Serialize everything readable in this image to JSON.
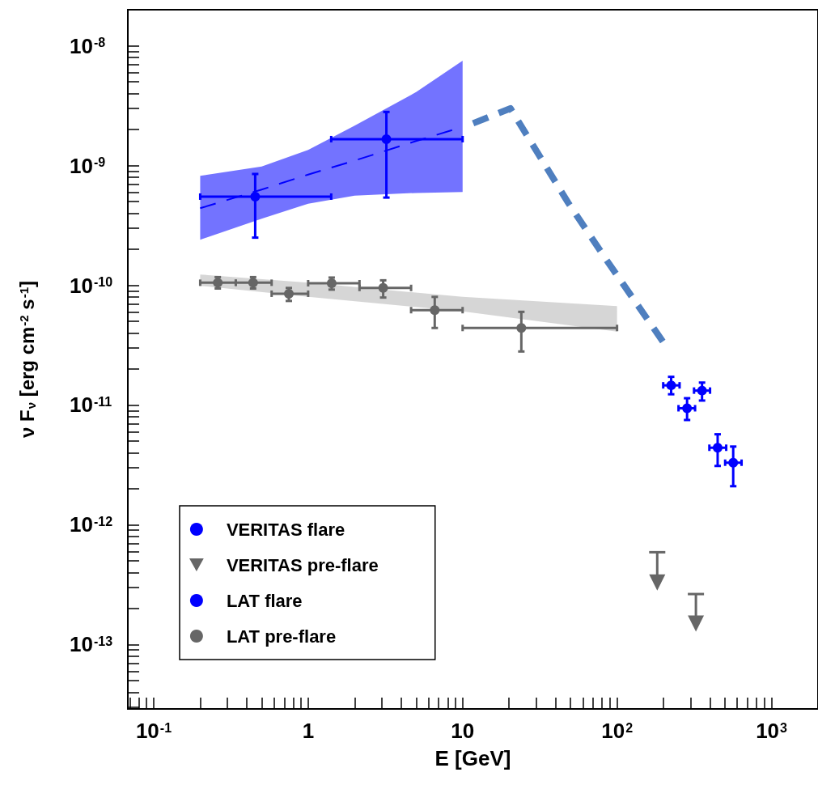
{
  "chart_data": {
    "type": "scatter",
    "xlabel": "E [GeV]",
    "ylabel": "ν F$_{ν}$ [erg cm$^{-2}$ s$^{-1}$]",
    "log": "xy",
    "legend": "bottom left",
    "xlim": [
      0.068,
      2000
    ],
    "ylim": [
      2.9e-14,
      2e-08
    ],
    "xticks": [
      {
        "value": 0.07,
        "label": null
      },
      {
        "value": 0.08,
        "label": null
      },
      {
        "value": 0.09,
        "label": null
      },
      {
        "value": 0.1,
        "label": "10$^{-1}$"
      },
      {
        "value": 0.2,
        "label": null
      },
      {
        "value": 0.3,
        "label": null
      },
      {
        "value": 0.4,
        "label": null
      },
      {
        "value": 0.5,
        "label": null
      },
      {
        "value": 0.6,
        "label": null
      },
      {
        "value": 0.7,
        "label": null
      },
      {
        "value": 0.8,
        "label": null
      },
      {
        "value": 0.9,
        "label": null
      },
      1,
      {
        "value": 2,
        "label": null
      },
      {
        "value": 3,
        "label": null
      },
      {
        "value": 4,
        "label": null
      },
      {
        "value": 5,
        "label": null
      },
      {
        "value": 6,
        "label": null
      },
      {
        "value": 7,
        "label": null
      },
      {
        "value": 8,
        "label": null
      },
      {
        "value": 9,
        "label": null
      },
      10,
      {
        "value": 20,
        "label": null
      },
      {
        "value": 30,
        "label": null
      },
      {
        "value": 40,
        "label": null
      },
      {
        "value": 50,
        "label": null
      },
      {
        "value": 60,
        "label": null
      },
      {
        "value": 70,
        "label": null
      },
      {
        "value": 80,
        "label": null
      },
      {
        "value": 90,
        "label": null
      },
      {
        "value": 100,
        "label": "10$^{2}$"
      },
      {
        "value": 200,
        "label": null
      },
      {
        "value": 300,
        "label": null
      },
      {
        "value": 400,
        "label": null
      },
      {
        "value": 500,
        "label": null
      },
      {
        "value": 600,
        "label": null
      },
      {
        "value": 700,
        "label": null
      },
      {
        "value": 800,
        "label": null
      },
      {
        "value": 900,
        "label": null
      },
      {
        "value": 1000,
        "label": "10$^{3}$"
      }
    ],
    "yticks": [
      {
        "value": 3e-14,
        "label": null
      },
      {
        "value": 4e-14,
        "label": null
      },
      {
        "value": 5e-14,
        "label": null
      },
      {
        "value": 6e-14,
        "label": null
      },
      {
        "value": 7e-14,
        "label": null
      },
      {
        "value": 8e-14,
        "label": null
      },
      {
        "value": 9e-14,
        "label": null
      },
      {
        "value": 1e-13,
        "label": "10$^{-13}$"
      },
      {
        "value": 2e-13,
        "label": null
      },
      {
        "value": 3e-13,
        "label": null
      },
      {
        "value": 4e-13,
        "label": null
      },
      {
        "value": 5e-13,
        "label": null
      },
      {
        "value": 6e-13,
        "label": null
      },
      {
        "value": 7e-13,
        "label": null
      },
      {
        "value": 8e-13,
        "label": null
      },
      {
        "value": 9e-13,
        "label": null
      },
      {
        "value": 1e-12,
        "label": "10$^{-12}$"
      },
      {
        "value": 2e-12,
        "label": null
      },
      {
        "value": 3e-12,
        "label": null
      },
      {
        "value": 4e-12,
        "label": null
      },
      {
        "value": 5e-12,
        "label": null
      },
      {
        "value": 6e-12,
        "label": null
      },
      {
        "value": 7e-12,
        "label": null
      },
      {
        "value": 8e-12,
        "label": null
      },
      {
        "value": 9e-12,
        "label": null
      },
      {
        "value": 1e-11,
        "label": "10$^{-11}$"
      },
      {
        "value": 2e-11,
        "label": null
      },
      {
        "value": 3e-11,
        "label": null
      },
      {
        "value": 4e-11,
        "label": null
      },
      {
        "value": 5e-11,
        "label": null
      },
      {
        "value": 6e-11,
        "label": null
      },
      {
        "value": 7e-11,
        "label": null
      },
      {
        "value": 8e-11,
        "label": null
      },
      {
        "value": 9e-11,
        "label": null
      },
      {
        "value": 1e-10,
        "label": "10$^{-10}$"
      },
      {
        "value": 2e-10,
        "label": null
      },
      {
        "value": 3e-10,
        "label": null
      },
      {
        "value": 4e-10,
        "label": null
      },
      {
        "value": 5e-10,
        "label": null
      },
      {
        "value": 6e-10,
        "label": null
      },
      {
        "value": 7e-10,
        "label": null
      },
      {
        "value": 8e-10,
        "label": null
      },
      {
        "value": 9e-10,
        "label": null
      },
      {
        "value": 1e-09,
        "label": "10$^{-9}$"
      },
      {
        "value": 2e-09,
        "label": null
      },
      {
        "value": 3e-09,
        "label": null
      },
      {
        "value": 4e-09,
        "label": null
      },
      {
        "value": 5e-09,
        "label": null
      },
      {
        "value": 6e-09,
        "label": null
      },
      {
        "value": 7e-09,
        "label": null
      },
      {
        "value": 8e-09,
        "label": null
      },
      {
        "value": 9e-09,
        "label": null
      },
      {
        "value": 1e-08,
        "label": "10$^{-8}$"
      }
    ],
    "series": [
      {
        "type": "line",
        "color": "#b4b4b4",
        "x": [
          0.2,
          1,
          10,
          100
        ],
        "values": [
          null,
          null,
          null,
          null
        ],
        "lower": [
          9.9e-11,
          8e-11,
          6.05e-11,
          4.1e-11
        ],
        "upper": [
          1.23e-10,
          1.05e-10,
          8e-11,
          6.7e-11
        ]
      },
      {
        "type": "line",
        "color": "#0000ff",
        "line_style": "dashed",
        "x": [
          0.2,
          0.5,
          1,
          2,
          5,
          10
        ],
        "values": [
          4.4e-10,
          6.3e-10,
          8.4e-10,
          1.1e-09,
          1.6e-09,
          2.1e-09
        ],
        "lower": [
          2.4e-10,
          3.6e-10,
          4.8e-10,
          5.6e-10,
          5.9e-10,
          6e-10
        ],
        "upper": [
          8.2e-10,
          9.8e-10,
          1.35e-09,
          2.15e-09,
          4.1e-09,
          7.5e-09
        ]
      },
      {
        "type": "line",
        "color": "#4f7fbf",
        "line_style": "dashed",
        "x": [
          11.7,
          20.4,
          48.2,
          84.5,
          204
        ],
        "values": [
          2.25e-09,
          3e-09,
          4.9e-10,
          1.66e-10,
          3.2e-11
        ]
      },
      {
        "name": "VERITAS flare",
        "marker": "circle",
        "color": "#0000ff",
        "x": [
          224,
          284,
          355,
          448,
          565
        ],
        "values": [
          1.46e-11,
          9.4e-12,
          1.32e-11,
          4.4e-12,
          3.3e-12
        ],
        "errors": [
          [
            1.23e-11,
            1.72e-11
          ],
          [
            7.5e-12,
            1.14e-11
          ],
          [
            1.09e-11,
            1.54e-11
          ],
          [
            3.1e-12,
            5.7e-12
          ],
          [
            2.1e-12,
            4.5e-12
          ]
        ],
        "xerrors": [
          [
            199,
            254
          ],
          [
            250,
            320
          ],
          [
            315,
            400
          ],
          [
            396,
            509
          ],
          [
            501,
            640
          ]
        ]
      },
      {
        "name": "VERITAS pre-flare",
        "marker": "triangle",
        "color": "#666666",
        "x": [
          182,
          324
        ],
        "values": [
          3.3e-13,
          1.5e-13
        ],
        "errors": [
          [
            3.3e-13,
            5.9e-13
          ],
          [
            1.5e-13,
            2.64e-13
          ]
        ]
      },
      {
        "name": "LAT flare",
        "marker": "circle",
        "color": "#0000ff",
        "x": [
          0.454,
          3.21
        ],
        "values": [
          5.5e-10,
          1.66e-09
        ],
        "errors": [
          [
            2.5e-10,
            8.5e-10
          ],
          [
            5.4e-10,
            2.8e-09
          ]
        ],
        "xerrors": [
          [
            0.2,
            1.41
          ],
          [
            1.41,
            10
          ]
        ]
      },
      {
        "name": "LAT pre-flare",
        "marker": "circle",
        "color": "#666666",
        "x": [
          0.26,
          0.44,
          0.75,
          1.42,
          3.06,
          6.6,
          24
        ],
        "values": [
          1.05e-10,
          1.05e-10,
          8.5e-11,
          1.04e-10,
          9.5e-11,
          6.2e-11,
          4.4e-11
        ],
        "errors": [
          [
            9.4e-11,
            1.17e-10
          ],
          [
            9.4e-11,
            1.17e-10
          ],
          [
            7.4e-11,
            9.5e-11
          ],
          [
            9.2e-11,
            1.16e-10
          ],
          [
            7.9e-11,
            1.1e-10
          ],
          [
            4.4e-11,
            8e-11
          ],
          [
            2.8e-11,
            6e-11
          ]
        ],
        "xerrors": [
          [
            0.2,
            0.34
          ],
          [
            0.34,
            0.58
          ],
          [
            0.58,
            1.0
          ],
          [
            1.0,
            2.15
          ],
          [
            2.15,
            4.64
          ],
          [
            4.64,
            10
          ],
          [
            10,
            100
          ]
        ]
      }
    ]
  }
}
